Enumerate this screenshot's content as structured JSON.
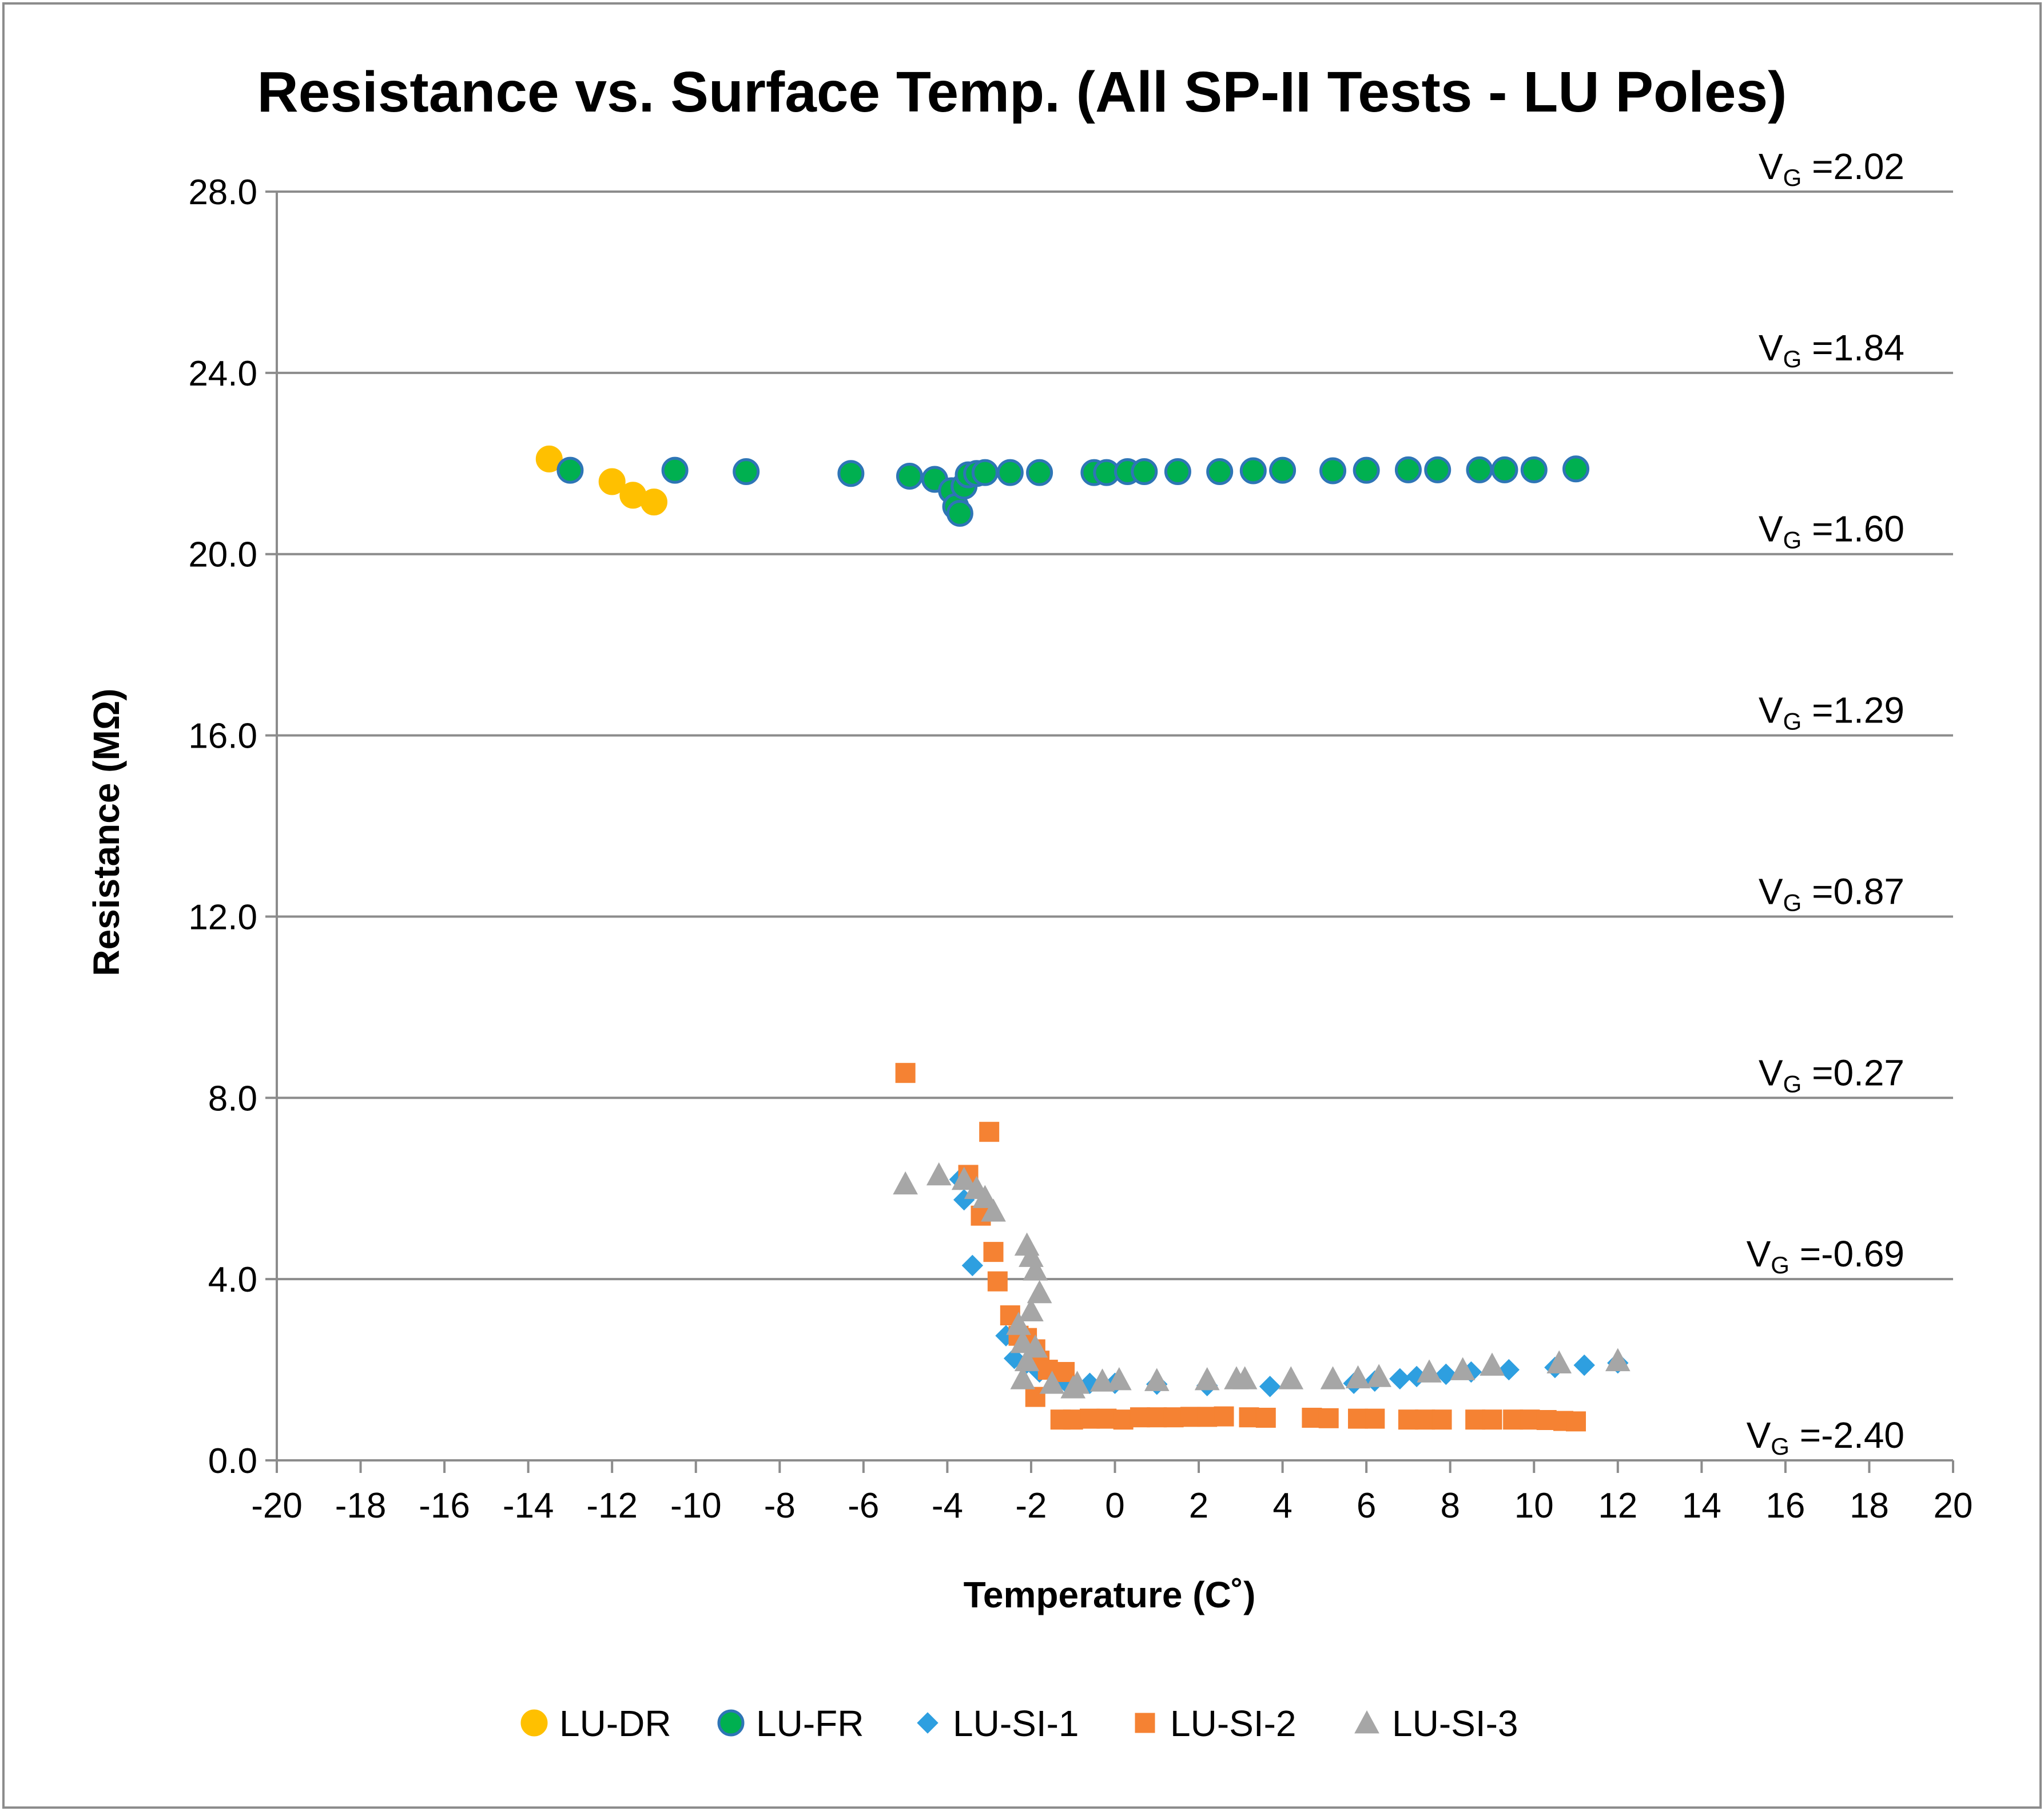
{
  "chart_data": {
    "type": "scatter",
    "title": "Resistance vs. Surface Temp. (All SP-II Tests - LU Poles)",
    "xlabel": "Temperature (C˚)",
    "ylabel": "Resistance (MΩ)",
    "xlim": [
      -20,
      20
    ],
    "ylim": [
      0,
      28
    ],
    "x_ticks": [
      -20,
      -18,
      -16,
      -14,
      -12,
      -10,
      -8,
      -6,
      -4,
      -2,
      0,
      2,
      4,
      6,
      8,
      10,
      12,
      14,
      16,
      18,
      20
    ],
    "x_tick_labels": [
      "-20",
      "-18",
      "-16",
      "-14",
      "-12",
      "-10",
      "-8",
      "-6",
      "-4",
      "-2",
      "0",
      "2",
      "4",
      "6",
      "8",
      "10",
      "12",
      "14",
      "16",
      "18",
      "20"
    ],
    "y_ticks": [
      0,
      4,
      8,
      12,
      16,
      20,
      24,
      28
    ],
    "y_tick_labels": [
      "0.0",
      "4.0",
      "8.0",
      "12.0",
      "16.0",
      "20.0",
      "24.0",
      "28.0"
    ],
    "grid": "horizontal",
    "legend_position": "bottom",
    "annotations": [
      {
        "y": 28,
        "prefix": "V",
        "sub": "G",
        "value": " =2.02"
      },
      {
        "y": 24,
        "prefix": "V",
        "sub": "G",
        "value": " =1.84"
      },
      {
        "y": 20,
        "prefix": "V",
        "sub": "G",
        "value": " =1.60"
      },
      {
        "y": 16,
        "prefix": "V",
        "sub": "G",
        "value": " =1.29"
      },
      {
        "y": 12,
        "prefix": "V",
        "sub": "G",
        "value": " =0.87"
      },
      {
        "y": 8,
        "prefix": "V",
        "sub": "G",
        "value": " =0.27"
      },
      {
        "y": 4,
        "prefix": "V",
        "sub": "G",
        "value": " =-0.69"
      },
      {
        "y": 0,
        "prefix": "V",
        "sub": "G",
        "value": " =-2.40"
      }
    ],
    "series": [
      {
        "name": "LU-DR",
        "marker": "circle",
        "color": "#FFC000",
        "edge": "#FFC000",
        "points": [
          [
            -13.5,
            22.1
          ],
          [
            -12,
            21.6
          ],
          [
            -11.5,
            21.3
          ],
          [
            -11,
            21.15
          ]
        ]
      },
      {
        "name": "LU-FR",
        "marker": "circle",
        "color": "#00B050",
        "edge": "#2E75B6",
        "points": [
          [
            -13,
            21.85
          ],
          [
            -10.5,
            21.85
          ],
          [
            -8.8,
            21.82
          ],
          [
            -6.3,
            21.78
          ],
          [
            -4.9,
            21.72
          ],
          [
            -4.3,
            21.65
          ],
          [
            -3.9,
            21.4
          ],
          [
            -3.8,
            21.05
          ],
          [
            -3.7,
            20.9
          ],
          [
            -3.6,
            21.5
          ],
          [
            -3.5,
            21.75
          ],
          [
            -3.3,
            21.78
          ],
          [
            -3.1,
            21.8
          ],
          [
            -2.5,
            21.8
          ],
          [
            -1.8,
            21.8
          ],
          [
            -0.5,
            21.8
          ],
          [
            -0.2,
            21.8
          ],
          [
            0.3,
            21.82
          ],
          [
            0.7,
            21.82
          ],
          [
            1.5,
            21.82
          ],
          [
            2.5,
            21.82
          ],
          [
            3.3,
            21.84
          ],
          [
            4,
            21.85
          ],
          [
            5.2,
            21.84
          ],
          [
            6,
            21.85
          ],
          [
            7,
            21.86
          ],
          [
            7.7,
            21.86
          ],
          [
            8.7,
            21.86
          ],
          [
            9.3,
            21.86
          ],
          [
            10,
            21.86
          ],
          [
            11,
            21.88
          ]
        ]
      },
      {
        "name": "LU-SI-1",
        "marker": "diamond",
        "color": "#2E9FE0",
        "edge": "#2E9FE0",
        "points": [
          [
            -3.7,
            6.2
          ],
          [
            -3.6,
            5.75
          ],
          [
            -3.4,
            4.3
          ],
          [
            -2.6,
            2.75
          ],
          [
            -2.4,
            2.25
          ],
          [
            -2.1,
            2.15
          ],
          [
            -1.8,
            1.95
          ],
          [
            -1.2,
            1.75
          ],
          [
            -0.6,
            1.7
          ],
          [
            0,
            1.7
          ],
          [
            1,
            1.68
          ],
          [
            2.2,
            1.65
          ],
          [
            3.7,
            1.63
          ],
          [
            5.7,
            1.7
          ],
          [
            6.2,
            1.75
          ],
          [
            6.8,
            1.8
          ],
          [
            7.2,
            1.85
          ],
          [
            7.9,
            1.9
          ],
          [
            8.5,
            1.95
          ],
          [
            9.4,
            2.0
          ],
          [
            10.5,
            2.05
          ],
          [
            11.2,
            2.1
          ],
          [
            12,
            2.15
          ]
        ]
      },
      {
        "name": "LU-SI-2",
        "marker": "square",
        "color": "#F58233",
        "edge": "#F58233",
        "points": [
          [
            -5,
            8.55
          ],
          [
            -3.5,
            6.3
          ],
          [
            -3.2,
            5.4
          ],
          [
            -3,
            7.25
          ],
          [
            -2.9,
            4.6
          ],
          [
            -2.8,
            3.95
          ],
          [
            -2.5,
            3.2
          ],
          [
            -2.3,
            2.75
          ],
          [
            -2.1,
            2.7
          ],
          [
            -1.9,
            2.45
          ],
          [
            -1.8,
            2.2
          ],
          [
            -1.6,
            2.0
          ],
          [
            -1.2,
            1.95
          ],
          [
            -1.9,
            1.4
          ],
          [
            -1.3,
            0.9
          ],
          [
            -1.0,
            0.9
          ],
          [
            -0.6,
            0.92
          ],
          [
            -0.2,
            0.92
          ],
          [
            0.2,
            0.9
          ],
          [
            0.6,
            0.95
          ],
          [
            1,
            0.95
          ],
          [
            1.4,
            0.95
          ],
          [
            1.8,
            0.96
          ],
          [
            2.2,
            0.96
          ],
          [
            2.6,
            0.97
          ],
          [
            3.2,
            0.95
          ],
          [
            3.6,
            0.94
          ],
          [
            4.7,
            0.94
          ],
          [
            5.1,
            0.93
          ],
          [
            5.8,
            0.92
          ],
          [
            6.2,
            0.92
          ],
          [
            7,
            0.9
          ],
          [
            7.4,
            0.9
          ],
          [
            7.8,
            0.9
          ],
          [
            8.6,
            0.9
          ],
          [
            9,
            0.9
          ],
          [
            9.5,
            0.9
          ],
          [
            9.9,
            0.9
          ],
          [
            10.3,
            0.89
          ],
          [
            10.7,
            0.87
          ],
          [
            11,
            0.86
          ]
        ]
      },
      {
        "name": "LU-SI-3",
        "marker": "triangle",
        "color": "#A6A6A6",
        "edge": "#A6A6A6",
        "points": [
          [
            -5,
            6.1
          ],
          [
            -4.2,
            6.3
          ],
          [
            -3.6,
            6.2
          ],
          [
            -3.3,
            6.0
          ],
          [
            -3.1,
            5.8
          ],
          [
            -2.9,
            5.5
          ],
          [
            -2.1,
            4.75
          ],
          [
            -2.0,
            4.5
          ],
          [
            -1.9,
            4.2
          ],
          [
            -1.8,
            3.7
          ],
          [
            -2.0,
            3.3
          ],
          [
            -2.3,
            3.0
          ],
          [
            -2.2,
            2.6
          ],
          [
            -1.9,
            2.5
          ],
          [
            -2.1,
            2.2
          ],
          [
            -2.2,
            1.8
          ],
          [
            -1.5,
            1.7
          ],
          [
            -1.0,
            1.6
          ],
          [
            -0.9,
            1.7
          ],
          [
            -0.3,
            1.75
          ],
          [
            0.1,
            1.78
          ],
          [
            1,
            1.76
          ],
          [
            2.2,
            1.78
          ],
          [
            2.9,
            1.8
          ],
          [
            3.1,
            1.8
          ],
          [
            4.2,
            1.8
          ],
          [
            5.2,
            1.8
          ],
          [
            5.8,
            1.82
          ],
          [
            6.3,
            1.85
          ],
          [
            7.5,
            1.95
          ],
          [
            8.3,
            2.0
          ],
          [
            9,
            2.1
          ],
          [
            10.6,
            2.15
          ],
          [
            12,
            2.2
          ]
        ]
      }
    ]
  }
}
